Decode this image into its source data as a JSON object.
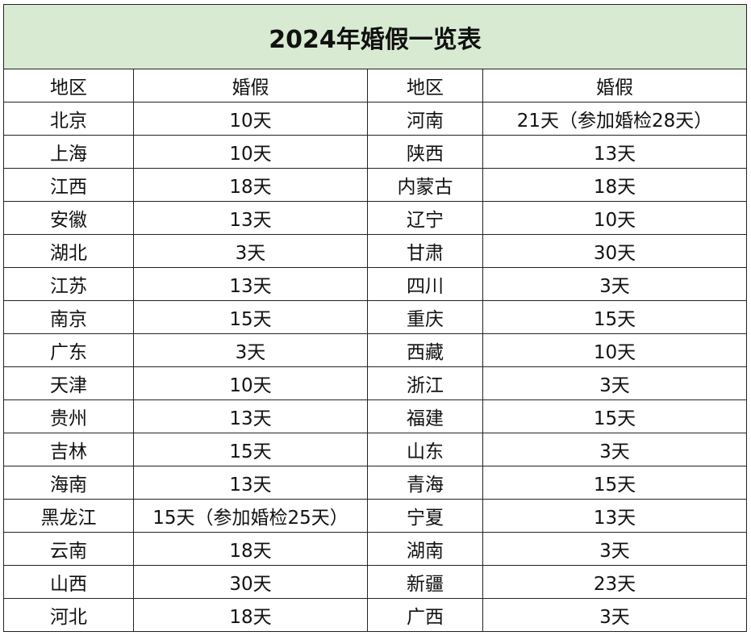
{
  "table": {
    "title": "2024年婚假一览表",
    "header": [
      "地区",
      "婚假",
      "地区",
      "婚假"
    ],
    "rows": [
      [
        "北京",
        "10天",
        "河南",
        "21天（参加婚检28天）"
      ],
      [
        "上海",
        "10天",
        "陕西",
        "13天"
      ],
      [
        "江西",
        "18天",
        "内蒙古",
        "18天"
      ],
      [
        "安徽",
        "13天",
        "辽宁",
        "10天"
      ],
      [
        "湖北",
        "3天",
        "甘肃",
        "30天"
      ],
      [
        "江苏",
        "13天",
        "四川",
        "3天"
      ],
      [
        "南京",
        "15天",
        "重庆",
        "15天"
      ],
      [
        "广东",
        "3天",
        "西藏",
        "10天"
      ],
      [
        "天津",
        "10天",
        "浙江",
        "3天"
      ],
      [
        "贵州",
        "13天",
        "福建",
        "15天"
      ],
      [
        "吉林",
        "15天",
        "山东",
        "3天"
      ],
      [
        "海南",
        "13天",
        "青海",
        "15天"
      ],
      [
        "黑龙江",
        "15天（参加婚检25天）",
        "宁夏",
        "13天"
      ],
      [
        "云南",
        "18天",
        "湖南",
        "3天"
      ],
      [
        "山西",
        "30天",
        "新疆",
        "23天"
      ],
      [
        "河北",
        "18天",
        "广西",
        "3天"
      ]
    ]
  }
}
